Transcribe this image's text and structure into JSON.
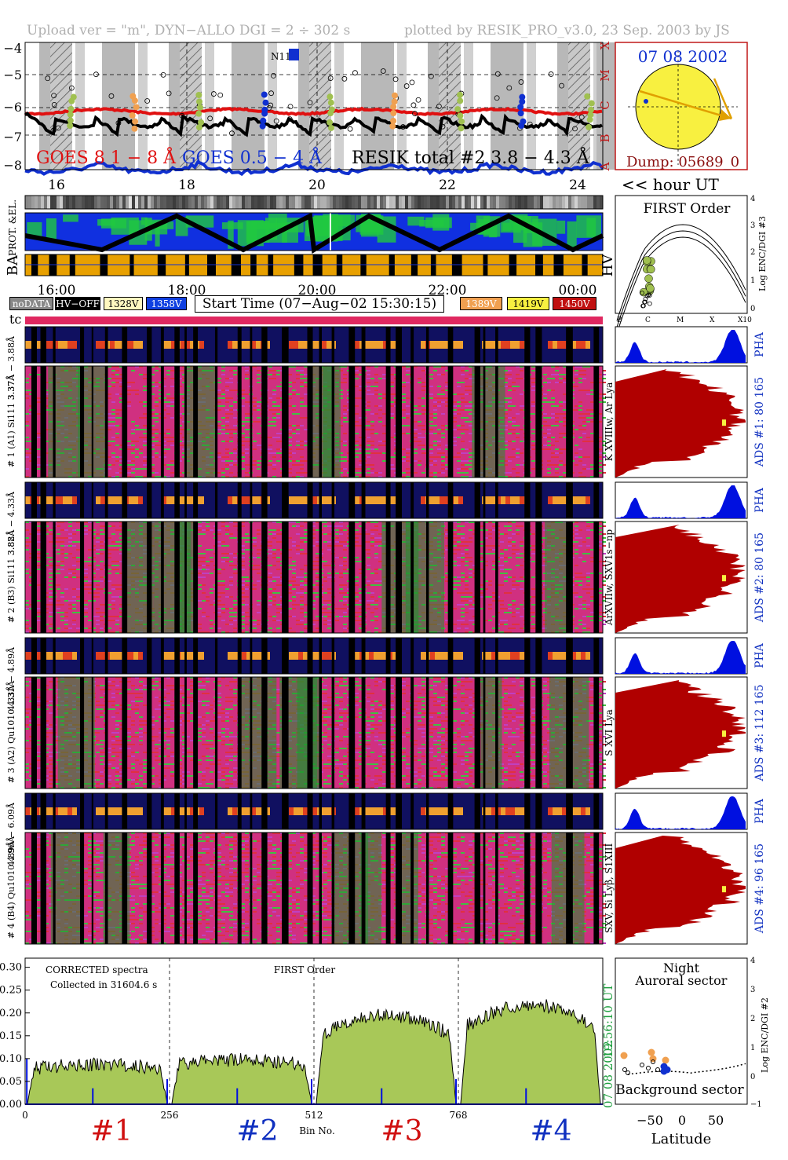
{
  "header": {
    "left": "Upload ver = \"m\", DYN−ALLO DGI =   2 ÷ 302 s",
    "right": "plotted by RESIK_PRO_v3.0, 23 Sep. 2003 by JS"
  },
  "goes": {
    "yticks": [
      "−4",
      "−5",
      "−6",
      "−7",
      "−8"
    ],
    "class_labels": [
      "X",
      "M",
      "C",
      "B",
      "A"
    ],
    "legend_goes8": "GOES 8 1 − 8 Å",
    "legend_goes05": "GOES 0.5 − 4 Å",
    "legend_resik": "RESIK total #2  3.8 − 4.3 Å",
    "marker_label": "N11",
    "hour_ticks": [
      "16",
      "18",
      "20",
      "22",
      "24"
    ],
    "hour_label": "<< hour UT"
  },
  "sun": {
    "date": "07 08 2002",
    "dump": "Dump: 05689_0"
  },
  "orbit": {
    "row_labels": [
      "PROT. &EL.",
      "BA"
    ],
    "hv_label": "HV",
    "time_ticks": [
      "16:00",
      "18:00",
      "20:00",
      "22:00",
      "00:00"
    ]
  },
  "first_order_top": {
    "title": "FIRST Order",
    "ylabel": "Log ENC/DGI #3",
    "yticks": [
      "4",
      "3",
      "2",
      "1",
      "0"
    ],
    "xticks": [
      "B",
      "C",
      "M",
      "X",
      "X10"
    ]
  },
  "legend_bar": {
    "nodata": "noDATA",
    "hvoff": "HV−OFF",
    "v1328": "1328V",
    "v1358": "1358V",
    "start": "Start Time (07−Aug−02 15:30:15)",
    "v1389": "1389V",
    "v1419": "1419V",
    "v1450": "1450V",
    "tc": "tc"
  },
  "channels": [
    {
      "pha_label": "4.89Å − 6.09Å",
      "label": "# 4 (B4) Qu1010 4.96Å",
      "lines": "SXV, Si Lyβ, S1XIII",
      "ads": "ADS #4:   96 165"
    },
    {
      "pha_label": "4.33Å − 4.89Å",
      "label": "# 3 (A2) Qu1010  4.31Å",
      "lines": "S XVI Lya",
      "ads": "ADS #3:   112 165"
    },
    {
      "pha_label": "3.88Å − 4.33Å",
      "label": "# 2 (B3) Si111  3.82Å",
      "lines": "ArXVIIw, SXV1s−np",
      "ads": "ADS #2:   80 165"
    },
    {
      "pha_label": "3.37Å − 3.88Å",
      "label": "# 1 (A1) Si111  3.37Å",
      "lines": "K XVIIIw, Ar Lya",
      "ads": "ADS #1:   80 165"
    }
  ],
  "pha_label": "PHA",
  "spectrum": {
    "note1": "CORRECTED spectra",
    "note2": "Collected in 31604.6 s",
    "title": "FIRST Order",
    "xlabel": "Bin No.",
    "timestamp": "19:56:10 UT",
    "date": "07 08 2002",
    "channel_labels": [
      "#1",
      "#2",
      "#3",
      "#4"
    ]
  },
  "latitude_panel": {
    "line1": "Night",
    "line2": "Auroral sector",
    "bottom": "Background sector",
    "xlabel": "Latitude",
    "xticks": [
      "−50",
      "0",
      "50"
    ],
    "yticks": [
      "4",
      "3",
      "2",
      "1",
      "0",
      "−1"
    ],
    "ylabel": "Log ENC/DGI #2"
  },
  "colors": {
    "goes8": "#e01010",
    "goes05": "#1030d0",
    "spectrum_fill": "#a8c858",
    "ads_fill": "#b00000",
    "pha_fill": "#0010e0",
    "v1328": "#fff8c0",
    "v1358": "#1040e0",
    "v1389": "#f0a050",
    "v1419": "#f8f040",
    "v1450": "#c01010"
  },
  "chart_data": {
    "type": "area",
    "title": "FIRST Order",
    "xlabel": "Bin No.",
    "ylabel": "",
    "xlim": [
      0,
      1024
    ],
    "ylim": [
      0,
      0.32
    ],
    "xticks": [
      0,
      256,
      512,
      768
    ],
    "yticks": [
      0.0,
      0.05,
      0.1,
      0.15,
      0.2,
      0.25,
      0.3
    ],
    "channel_boundaries": [
      256,
      512,
      768
    ],
    "series": [
      {
        "name": "#1",
        "bins": [
          0,
          256
        ],
        "level": 0.09,
        "peak": 0.12
      },
      {
        "name": "#2",
        "bins": [
          256,
          512
        ],
        "level": 0.1,
        "peak": 0.14
      },
      {
        "name": "#3",
        "bins": [
          512,
          768
        ],
        "level": 0.17,
        "peak": 0.22
      },
      {
        "name": "#4",
        "bins": [
          768,
          1024
        ],
        "level": 0.19,
        "peak": 0.26
      }
    ]
  }
}
